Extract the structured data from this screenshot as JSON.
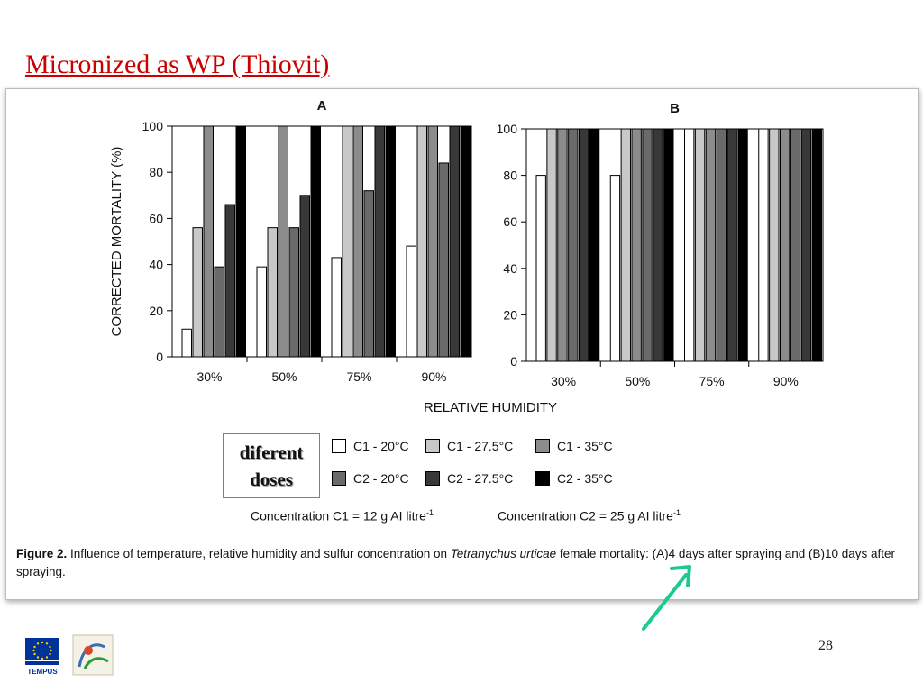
{
  "slide": {
    "title": "Micronized as WP (Thiovit)",
    "page_number": "28",
    "annotation_box": {
      "line1": "diferent",
      "line2": "doses"
    },
    "arrow_color": "#1ec98f",
    "logos": {
      "eu_text": "TEMPUS",
      "eu_icon": "eu-flag-icon",
      "ipm_icon": "ipm-logo-icon"
    }
  },
  "legend": [
    {
      "label": "C1 - 20°C",
      "color": "#ffffff"
    },
    {
      "label": "C1 - 27.5°C",
      "color": "#c8c8c8"
    },
    {
      "label": "C1 - 35°C",
      "color": "#8c8c8c"
    },
    {
      "label": "C2 - 20°C",
      "color": "#6a6a6a"
    },
    {
      "label": "C2 - 27.5°C",
      "color": "#383838"
    },
    {
      "label": "C2 - 35°C",
      "color": "#000000"
    }
  ],
  "concentrations": {
    "c1": {
      "text": "Concentration C1 = 12 g AI litre",
      "sup": "-1"
    },
    "c2": {
      "text": "Concentration C2 = 25 g AI litre",
      "sup": "-1"
    }
  },
  "caption": {
    "figure_label": "Figure 2.",
    "text_before": "Influence of temperature, relative humidity and sulfur concentration on",
    "species": "Tetranychus urticae",
    "text_after": "female mortality: (A)4 days after spraying and (B)10 days after spraying."
  },
  "chart_data": [
    {
      "type": "bar",
      "title": "A",
      "ylabel": "CORRECTED MORTALITY (%)",
      "xlabel": "RELATIVE HUMIDITY",
      "categories": [
        "30%",
        "50%",
        "75%",
        "90%"
      ],
      "ylim": [
        0,
        100
      ],
      "yticks": [
        0,
        20,
        40,
        60,
        80,
        100
      ],
      "series": [
        {
          "name": "C1 - 20°C",
          "values": [
            12,
            39,
            43,
            48
          ]
        },
        {
          "name": "C1 - 27.5°C",
          "values": [
            56,
            56,
            100,
            100
          ]
        },
        {
          "name": "C1 - 35°C",
          "values": [
            100,
            100,
            100,
            100
          ]
        },
        {
          "name": "C2 - 20°C",
          "values": [
            39,
            56,
            72,
            84
          ]
        },
        {
          "name": "C2 - 27.5°C",
          "values": [
            66,
            70,
            100,
            100
          ]
        },
        {
          "name": "C2 - 35°C",
          "values": [
            100,
            100,
            100,
            100
          ]
        }
      ]
    },
    {
      "type": "bar",
      "title": "B",
      "categories": [
        "30%",
        "50%",
        "75%",
        "90%"
      ],
      "ylim": [
        0,
        100
      ],
      "yticks": [
        0,
        20,
        40,
        60,
        80,
        100
      ],
      "series": [
        {
          "name": "C1 - 20°C",
          "values": [
            80,
            80,
            100,
            100
          ]
        },
        {
          "name": "C1 - 27.5°C",
          "values": [
            100,
            100,
            100,
            100
          ]
        },
        {
          "name": "C1 - 35°C",
          "values": [
            100,
            100,
            100,
            100
          ]
        },
        {
          "name": "C2 - 20°C",
          "values": [
            100,
            100,
            100,
            100
          ]
        },
        {
          "name": "C2 - 27.5°C",
          "values": [
            100,
            100,
            100,
            100
          ]
        },
        {
          "name": "C2 - 35°C",
          "values": [
            100,
            100,
            100,
            100
          ]
        }
      ]
    }
  ]
}
